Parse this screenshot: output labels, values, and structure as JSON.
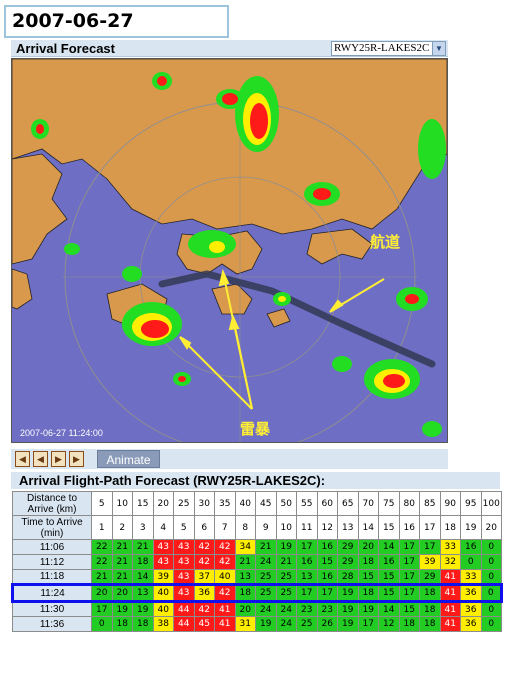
{
  "timestamp": "2007-06-27 11:06:00",
  "arrival_header": {
    "title": "Arrival Forecast",
    "route_select": "RWY25R-LAKES2C"
  },
  "map": {
    "timestamp_label": "2007-06-27 11:24:00",
    "annotation_route": "航道",
    "annotation_storm": "雷暴",
    "colors": {
      "sea": "#6e6ec4",
      "land": "#d9994d",
      "light": "#22dd22",
      "moderate": "#ffee00",
      "heavy": "#ff1a1a",
      "route": "#333a55",
      "annotation": "#ffee33"
    }
  },
  "controls": {
    "buttons": [
      "first-icon",
      "prev-icon",
      "play-icon",
      "next-icon"
    ],
    "animate_label": "Animate"
  },
  "forecast": {
    "title": "Arrival Flight-Path Forecast (RWY25R-LAKES2C):",
    "distance_label": "Distance to Arrive (km)",
    "time_label": "Time to Arrive (min)",
    "distances": [
      "5",
      "10",
      "15",
      "20",
      "25",
      "30",
      "35",
      "40",
      "45",
      "50",
      "55",
      "60",
      "65",
      "70",
      "75",
      "80",
      "85",
      "90",
      "95",
      "100"
    ],
    "minutes": [
      "1",
      "2",
      "3",
      "4",
      "5",
      "6",
      "7",
      "8",
      "9",
      "10",
      "11",
      "12",
      "13",
      "14",
      "15",
      "16",
      "17",
      "18",
      "19",
      "20"
    ],
    "highlight_row": 3,
    "rows": [
      {
        "time": "11:06",
        "values": [
          "22",
          "21",
          "21",
          "43",
          "43",
          "42",
          "42",
          "34",
          "21",
          "19",
          "17",
          "16",
          "29",
          "20",
          "14",
          "17",
          "17",
          "33",
          "16",
          "0"
        ]
      },
      {
        "time": "11:12",
        "values": [
          "22",
          "21",
          "18",
          "43",
          "43",
          "42",
          "42",
          "21",
          "24",
          "21",
          "16",
          "15",
          "29",
          "18",
          "16",
          "17",
          "39",
          "32",
          "0",
          "0"
        ]
      },
      {
        "time": "11:18",
        "values": [
          "21",
          "21",
          "14",
          "39",
          "43",
          "37",
          "40",
          "13",
          "25",
          "25",
          "13",
          "16",
          "28",
          "15",
          "15",
          "17",
          "29",
          "41",
          "33",
          "0"
        ]
      },
      {
        "time": "11:24",
        "values": [
          "20",
          "20",
          "13",
          "40",
          "43",
          "36",
          "42",
          "18",
          "25",
          "25",
          "17",
          "17",
          "19",
          "18",
          "15",
          "17",
          "18",
          "41",
          "36",
          "0"
        ]
      },
      {
        "time": "11:30",
        "values": [
          "17",
          "19",
          "19",
          "40",
          "44",
          "42",
          "41",
          "20",
          "24",
          "24",
          "23",
          "23",
          "19",
          "19",
          "14",
          "15",
          "18",
          "41",
          "36",
          "0"
        ]
      },
      {
        "time": "11:36",
        "values": [
          "0",
          "18",
          "18",
          "38",
          "44",
          "45",
          "41",
          "31",
          "19",
          "24",
          "25",
          "26",
          "19",
          "17",
          "12",
          "18",
          "18",
          "41",
          "36",
          "0"
        ]
      }
    ]
  }
}
